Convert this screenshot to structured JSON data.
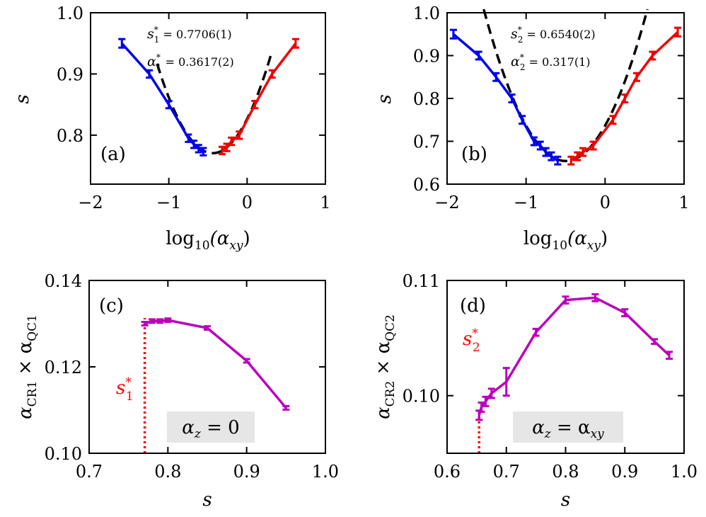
{
  "colors": {
    "blue": "#0000ee",
    "red": "#ee0000",
    "purple": "#bb00bb",
    "fit": "#000000",
    "star": "#ff0000",
    "boxbg": "#e6e6e6"
  },
  "chart_data": [
    {
      "id": "a",
      "type": "line",
      "panel_label": "(a)",
      "xlabel_base": "log",
      "xlabel_sub": "10",
      "xlabel_var": "(α",
      "xlabel_var_sub": "xy",
      "xlabel_close": ")",
      "ylabel": "s",
      "xlim": [
        -2,
        1
      ],
      "ylim": [
        0.72,
        1.0
      ],
      "xticks": [
        -2,
        -1,
        0,
        1
      ],
      "xtick_labels": [
        "−2",
        "−1",
        "0",
        "1"
      ],
      "yticks": [
        0.8,
        0.9,
        1.0
      ],
      "ytick_labels": [
        "0.8",
        "0.9",
        "1.0"
      ],
      "annotations": [
        {
          "sym": "s",
          "sup": "*",
          "sub": "1",
          "text": " = 0.7706(1)"
        },
        {
          "sym": "α",
          "sup": "*",
          "sub": "1",
          "text": " = 0.3617(2)"
        }
      ],
      "series": [
        {
          "name": "blue",
          "color_key": "blue",
          "x": [
            -1.6,
            -1.25,
            -1.0,
            -0.75,
            -0.68,
            -0.62,
            -0.56
          ],
          "y": [
            0.95,
            0.9,
            0.85,
            0.795,
            0.785,
            0.778,
            0.773
          ],
          "err": [
            0.007,
            0.006,
            0.006,
            0.006,
            0.006,
            0.006,
            0.006
          ]
        },
        {
          "name": "red",
          "color_key": "red",
          "x": [
            -0.32,
            -0.26,
            -0.2,
            -0.1,
            0.1,
            0.32,
            0.62
          ],
          "y": [
            0.775,
            0.78,
            0.79,
            0.8,
            0.85,
            0.9,
            0.95
          ],
          "err": [
            0.006,
            0.006,
            0.006,
            0.006,
            0.006,
            0.006,
            0.007
          ]
        }
      ],
      "fit": {
        "x0": -0.44,
        "y0": 0.7706,
        "a": 0.29,
        "xmin": -1.15,
        "xmax": 0.3
      }
    },
    {
      "id": "b",
      "type": "line",
      "panel_label": "(b)",
      "xlabel_base": "log",
      "xlabel_sub": "10",
      "xlabel_var": "(α",
      "xlabel_var_sub": "xy",
      "xlabel_close": ")",
      "ylabel": "s",
      "xlim": [
        -2,
        1
      ],
      "ylim": [
        0.6,
        1.0
      ],
      "xticks": [
        -2,
        -1,
        0,
        1
      ],
      "xtick_labels": [
        "−2",
        "−1",
        "0",
        "1"
      ],
      "yticks": [
        0.6,
        0.7,
        0.8,
        0.9,
        1.0
      ],
      "ytick_labels": [
        "0.6",
        "0.7",
        "0.8",
        "0.9",
        "1.0"
      ],
      "annotations": [
        {
          "sym": "s",
          "sup": "*",
          "sub": "2",
          "text": " = 0.6540(2)"
        },
        {
          "sym": "α",
          "sup": "*",
          "sub": "2",
          "text": " = 0.317(1)"
        }
      ],
      "series": [
        {
          "name": "blue",
          "color_key": "blue",
          "x": [
            -1.92,
            -1.6,
            -1.38,
            -1.18,
            -1.05,
            -0.9,
            -0.82,
            -0.75,
            -0.68,
            -0.6
          ],
          "y": [
            0.95,
            0.9,
            0.85,
            0.8,
            0.75,
            0.7,
            0.69,
            0.675,
            0.665,
            0.655
          ],
          "err": [
            0.01,
            0.009,
            0.009,
            0.009,
            0.009,
            0.009,
            0.009,
            0.009,
            0.009,
            0.009
          ]
        },
        {
          "name": "red",
          "color_key": "red",
          "x": [
            -0.43,
            -0.35,
            -0.28,
            -0.15,
            0.1,
            0.25,
            0.4,
            0.6,
            0.92
          ],
          "y": [
            0.655,
            0.665,
            0.675,
            0.69,
            0.75,
            0.8,
            0.85,
            0.9,
            0.955
          ],
          "err": [
            0.009,
            0.009,
            0.009,
            0.009,
            0.009,
            0.009,
            0.009,
            0.009,
            0.01
          ]
        }
      ],
      "fit": {
        "x0": -0.5,
        "y0": 0.654,
        "a": 0.33,
        "xmin": -1.62,
        "xmax": 0.62
      }
    },
    {
      "id": "c",
      "type": "line",
      "panel_label": "(c)",
      "xlabel": "s",
      "ylabel_main": "α",
      "ylabel_sub1": "CR1",
      "ylabel_times": " × α",
      "ylabel_sub2": "QC1",
      "xlim": [
        0.7,
        1.0
      ],
      "ylim": [
        0.1,
        0.14
      ],
      "xticks": [
        0.7,
        0.8,
        0.9,
        1.0
      ],
      "xtick_labels": [
        "0.7",
        "0.8",
        "0.9",
        "1.0"
      ],
      "yticks": [
        0.1,
        0.12,
        0.14
      ],
      "ytick_labels": [
        "0.10",
        "0.12",
        "0.14"
      ],
      "star": {
        "sym": "s",
        "sup": "*",
        "sub": "1",
        "x": 0.7706
      },
      "box": {
        "sym": "α",
        "sub": "z",
        "text": " = 0"
      },
      "series": [
        {
          "name": "purple",
          "color_key": "purple",
          "x": [
            0.7706,
            0.78,
            0.79,
            0.8,
            0.85,
            0.9,
            0.95
          ],
          "y": [
            0.13,
            0.1306,
            0.1306,
            0.1308,
            0.129,
            0.1214,
            0.1105
          ],
          "err": [
            0.0004,
            0.0004,
            0.0004,
            0.0004,
            0.0004,
            0.0004,
            0.0004
          ]
        }
      ]
    },
    {
      "id": "d",
      "type": "line",
      "panel_label": "(d)",
      "xlabel": "s",
      "ylabel_main": "α",
      "ylabel_sub1": "CR2",
      "ylabel_times": " × α",
      "ylabel_sub2": "QC2",
      "xlim": [
        0.6,
        1.0
      ],
      "ylim": [
        0.095,
        0.11
      ],
      "xticks": [
        0.6,
        0.7,
        0.8,
        0.9,
        1.0
      ],
      "xtick_labels": [
        "0.6",
        "0.7",
        "0.8",
        "0.9",
        "1.0"
      ],
      "yticks": [
        0.1,
        0.11
      ],
      "ytick_labels": [
        "0.10",
        "0.11"
      ],
      "star": {
        "sym": "s",
        "sup": "*",
        "sub": "2",
        "x": 0.654
      },
      "box": {
        "sym": "α",
        "sub": "z",
        "text": " = α",
        "sub2": "xy"
      },
      "series": [
        {
          "name": "purple",
          "color_key": "purple",
          "x": [
            0.654,
            0.658,
            0.665,
            0.675,
            0.7,
            0.75,
            0.8,
            0.85,
            0.9,
            0.95,
            0.975
          ],
          "y": [
            0.0983,
            0.099,
            0.0995,
            0.1002,
            0.1012,
            0.1055,
            0.1083,
            0.1085,
            0.1072,
            0.1047,
            0.1035
          ],
          "err": [
            0.0004,
            0.0004,
            0.0004,
            0.0004,
            0.0012,
            0.0003,
            0.0003,
            0.0003,
            0.0003,
            0.0002,
            0.0003
          ]
        }
      ]
    }
  ]
}
